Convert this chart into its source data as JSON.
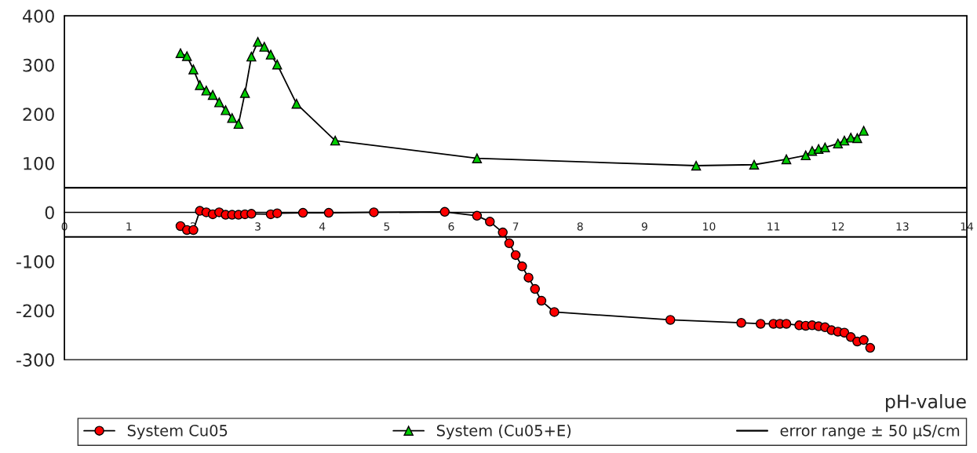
{
  "chart_data": {
    "type": "line",
    "xlabel": "pH-value",
    "xlim": [
      0,
      14
    ],
    "xticks": [
      0,
      1,
      2,
      3,
      4,
      5,
      6,
      7,
      8,
      9,
      10,
      11,
      12,
      13,
      14
    ],
    "ylim": [
      -300,
      400
    ],
    "yticks": [
      -300,
      -200,
      -100,
      0,
      100,
      200,
      300,
      400
    ],
    "grid": false,
    "legend": "bottom",
    "line_style": "solid",
    "series": [
      {
        "name": "System Cu05",
        "color": "#ff0000",
        "marker": "circle",
        "x": [
          1.8,
          1.9,
          2.0,
          2.1,
          2.2,
          2.3,
          2.4,
          2.5,
          2.6,
          2.7,
          2.8,
          2.9,
          3.2,
          3.3,
          3.7,
          4.1,
          4.8,
          5.9,
          6.4,
          6.6,
          6.8,
          6.9,
          7.0,
          7.1,
          7.2,
          7.3,
          7.4,
          7.6,
          9.4,
          10.5,
          10.8,
          11.0,
          11.1,
          11.2,
          11.4,
          11.5,
          11.6,
          11.7,
          11.8,
          11.9,
          12.0,
          12.1,
          12.2,
          12.3,
          12.4,
          12.5
        ],
        "values": [
          -28,
          -36,
          -36,
          3,
          0,
          -4,
          0,
          -5,
          -5,
          -5,
          -4,
          -3,
          -4,
          -2,
          -1,
          -1,
          0,
          1,
          -7,
          -19,
          -41,
          -63,
          -87,
          -110,
          -133,
          -156,
          -180,
          -203,
          -219,
          -225,
          -227,
          -227,
          -227,
          -227,
          -230,
          -231,
          -230,
          -232,
          -234,
          -240,
          -243,
          -245,
          -254,
          -263,
          -260,
          -276
        ]
      },
      {
        "name": "System (Cu05+E)",
        "color": "#00cc00",
        "marker": "triangle",
        "x": [
          1.8,
          1.9,
          2.0,
          2.1,
          2.2,
          2.3,
          2.4,
          2.5,
          2.6,
          2.7,
          2.8,
          2.9,
          3.0,
          3.1,
          3.2,
          3.3,
          3.6,
          4.2,
          6.4,
          9.8,
          10.7,
          11.2,
          11.5,
          11.6,
          11.7,
          11.8,
          12.0,
          12.1,
          12.2,
          12.3,
          12.4
        ],
        "values": [
          324,
          318,
          291,
          259,
          248,
          239,
          224,
          208,
          192,
          180,
          243,
          317,
          347,
          337,
          321,
          301,
          221,
          146,
          110,
          95,
          97,
          108,
          116,
          125,
          129,
          132,
          140,
          146,
          152,
          151,
          166
        ]
      }
    ],
    "ref_lines": [
      {
        "axis": "y",
        "value": 50,
        "label": "error range ± 50 µS/cm",
        "color": "#000000",
        "line_style": "solid"
      },
      {
        "axis": "y",
        "value": -50,
        "color": "#000000",
        "line_style": "solid"
      }
    ]
  }
}
